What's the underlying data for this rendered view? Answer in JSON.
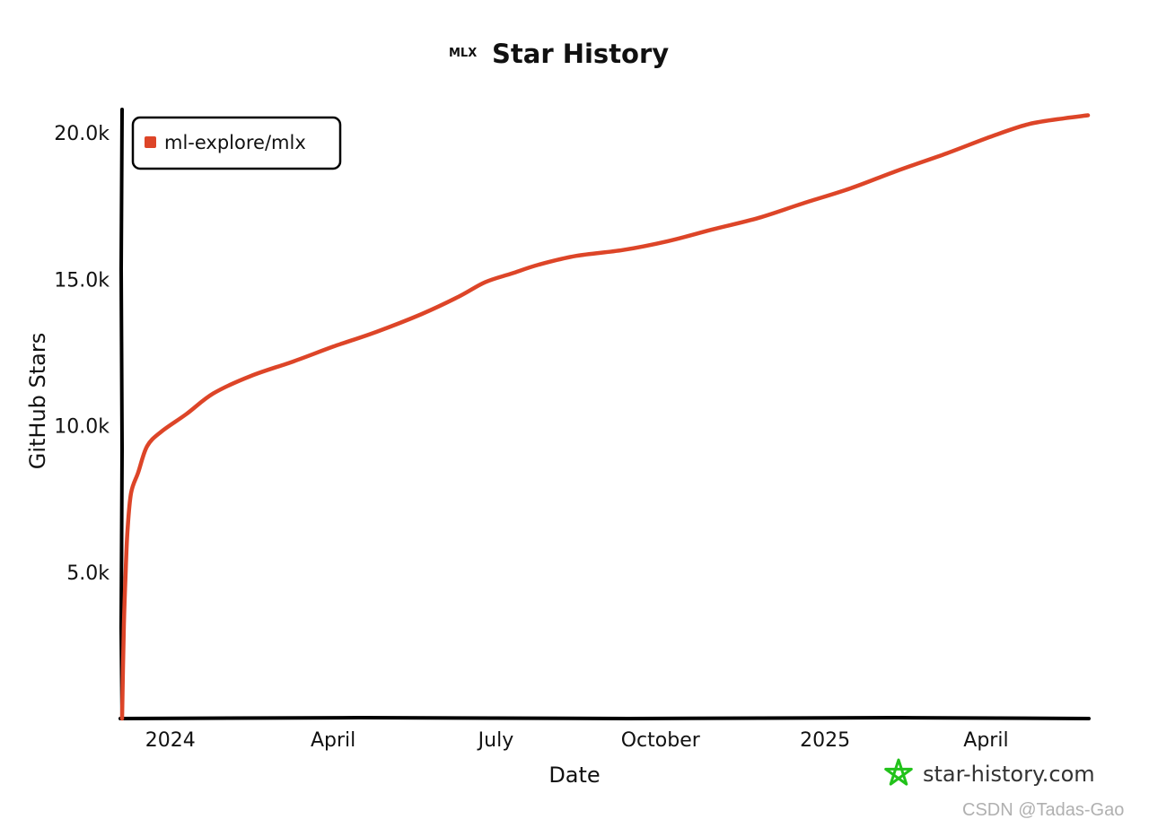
{
  "chart_data": {
    "type": "line",
    "title": "Star History",
    "logo_text": "MLX",
    "xlabel": "Date",
    "ylabel": "GitHub Stars",
    "x_tick_labels": [
      "2024",
      "April",
      "July",
      "October",
      "2025",
      "April"
    ],
    "x_tick_dates": [
      "2024-01-01",
      "2024-04-01",
      "2024-07-01",
      "2024-10-01",
      "2025-01-01",
      "2025-04-01"
    ],
    "y_tick_labels": [
      "5.0k",
      "10.0k",
      "15.0k",
      "20.0k"
    ],
    "y_ticks": [
      5000,
      10000,
      15000,
      20000
    ],
    "xlim": [
      "2023-12-05",
      "2025-05-28"
    ],
    "ylim": [
      0,
      20800
    ],
    "grid": false,
    "legend_position": "top-left",
    "line_color": "#dd4528",
    "series": [
      {
        "name": "ml-explore/mlx",
        "color": "#dd4528",
        "points": [
          [
            "2023-12-05",
            0
          ],
          [
            "2023-12-06",
            3200
          ],
          [
            "2023-12-07",
            5000
          ],
          [
            "2023-12-08",
            6400
          ],
          [
            "2023-12-10",
            7700
          ],
          [
            "2023-12-14",
            8400
          ],
          [
            "2023-12-19",
            9300
          ],
          [
            "2023-12-27",
            9800
          ],
          [
            "2024-01-10",
            10400
          ],
          [
            "2024-01-25",
            11100
          ],
          [
            "2024-02-15",
            11700
          ],
          [
            "2024-03-10",
            12200
          ],
          [
            "2024-04-01",
            12700
          ],
          [
            "2024-04-25",
            13200
          ],
          [
            "2024-05-20",
            13800
          ],
          [
            "2024-06-10",
            14400
          ],
          [
            "2024-06-25",
            14900
          ],
          [
            "2024-07-10",
            15200
          ],
          [
            "2024-07-25",
            15500
          ],
          [
            "2024-08-15",
            15800
          ],
          [
            "2024-09-10",
            16000
          ],
          [
            "2024-10-05",
            16300
          ],
          [
            "2024-10-30",
            16700
          ],
          [
            "2024-11-25",
            17100
          ],
          [
            "2024-12-20",
            17600
          ],
          [
            "2025-01-15",
            18100
          ],
          [
            "2025-02-10",
            18700
          ],
          [
            "2025-03-10",
            19300
          ],
          [
            "2025-04-05",
            19900
          ],
          [
            "2025-04-25",
            20300
          ],
          [
            "2025-05-15",
            20500
          ],
          [
            "2025-05-28",
            20600
          ]
        ]
      }
    ]
  },
  "brand": {
    "text": "star-history.com",
    "color": "#22c21b"
  },
  "watermark": {
    "text": "CSDN @Tadas-Gao"
  }
}
